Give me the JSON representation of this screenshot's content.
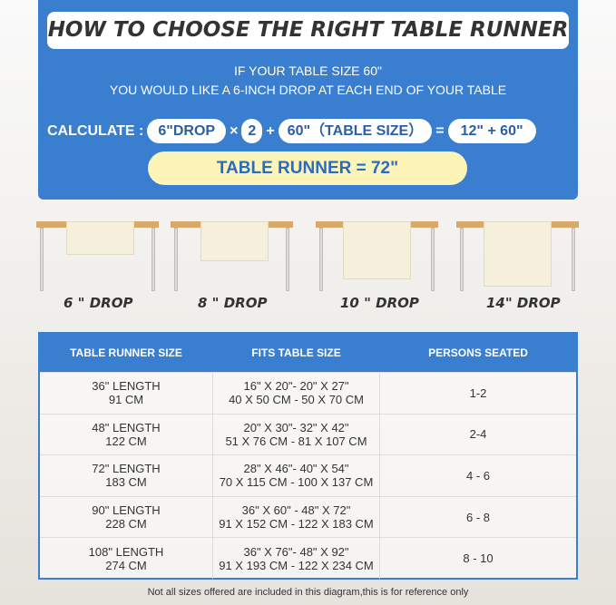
{
  "title": "HOW TO CHOOSE THE RIGHT TABLE RUNNER",
  "subtitle_1": "IF YOUR TABLE SIZE 60\"",
  "subtitle_2": "YOU WOULD LIKE A 6-INCH DROP AT EACH END OF YOUR TABLE",
  "calc": {
    "label": "CALCULATE :",
    "drop": "6\"DROP",
    "times": "×",
    "two": "2",
    "plus": "+",
    "table": "60\"（TABLE SIZE）",
    "equals": "=",
    "sum": "12\" + 60\"",
    "result": "TABLE RUNNER = 72\""
  },
  "drops": [
    "6 \" DROP",
    "8 \" DROP",
    "10 \" DROP",
    "14\" DROP"
  ],
  "table": {
    "headers": [
      "TABLE RUNNER SIZE",
      "FITS TABLE SIZE",
      "PERSONS SEATED"
    ],
    "rows": [
      {
        "size": "36\" LENGTH",
        "size_cm": "91 CM",
        "fits": "16\" X 20\"- 20\" X 27\"",
        "fits_cm": "40 X 50 CM - 50 X 70 CM",
        "persons": "1-2"
      },
      {
        "size": "48\" LENGTH",
        "size_cm": "122 CM",
        "fits": "20\" X 30\"- 32\" X 42\"",
        "fits_cm": "51 X 76 CM - 81 X 107 CM",
        "persons": "2-4"
      },
      {
        "size": "72\" LENGTH",
        "size_cm": "183 CM",
        "fits": "28\" X 46\"- 40\" X 54\"",
        "fits_cm": "70 X 115 CM - 100 X 137 CM",
        "persons": "4 - 6"
      },
      {
        "size": "90\" LENGTH",
        "size_cm": "228 CM",
        "fits": "36\" X 60\" - 48\" X 72\"",
        "fits_cm": "91 X 152 CM - 122 X 183 CM",
        "persons": "6 - 8"
      },
      {
        "size": "108\" LENGTH",
        "size_cm": "274 CM",
        "fits": "36\" X 76\"- 48\" X 92\"",
        "fits_cm": "91 X 193 CM - 122 X 234 CM",
        "persons": "8 - 10"
      }
    ]
  },
  "note": "Not all sizes offered are included in this diagram,this is for reference only"
}
